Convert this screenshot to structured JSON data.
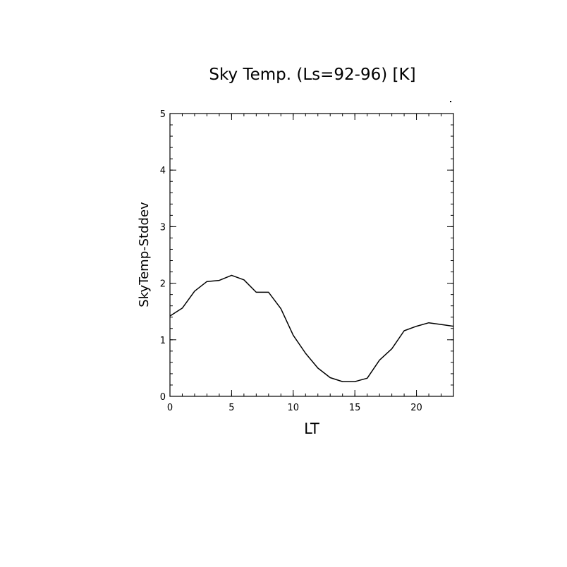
{
  "chart_data": {
    "type": "line",
    "title": "Sky Temp. (Ls=92-96) [K]",
    "xlabel": "LT",
    "ylabel": "SkyTemp-Stddev",
    "xlim": [
      0,
      23
    ],
    "ylim": [
      0,
      5
    ],
    "xticks": [
      0,
      5,
      10,
      15,
      20
    ],
    "xtick_labels": [
      "0",
      "5",
      "10",
      "15",
      "20"
    ],
    "yticks": [
      0,
      1,
      2,
      3,
      4,
      5
    ],
    "ytick_labels": [
      "0",
      "1",
      "2",
      "3",
      "4",
      "5"
    ],
    "grid": false,
    "series": [
      {
        "x": [
          0,
          1,
          2,
          3,
          4,
          5,
          6,
          7,
          8,
          9,
          10,
          11,
          12,
          13,
          14,
          15,
          16,
          17,
          18,
          19,
          20,
          21,
          22,
          23
        ],
        "values": [
          1.42,
          1.56,
          1.86,
          2.03,
          2.05,
          2.14,
          2.06,
          1.84,
          1.84,
          1.55,
          1.08,
          0.76,
          0.5,
          0.33,
          0.26,
          0.26,
          0.32,
          0.64,
          0.84,
          1.16,
          1.24,
          1.3,
          1.27,
          1.24
        ]
      }
    ],
    "line_color": "#000000"
  }
}
